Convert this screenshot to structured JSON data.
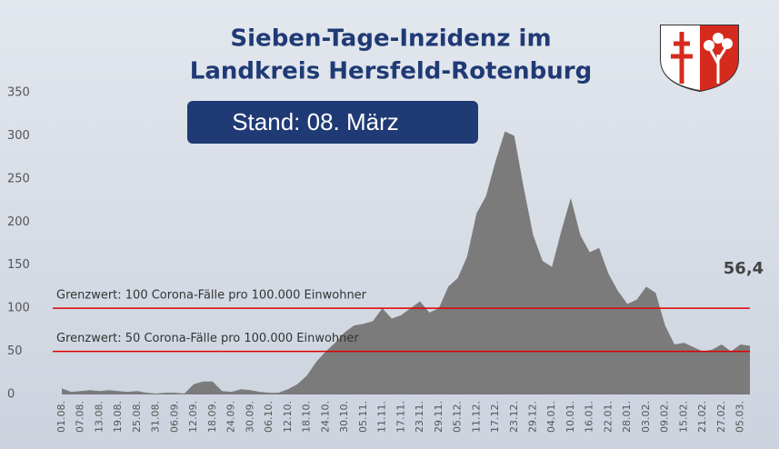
{
  "chart_data": {
    "type": "area",
    "title_lines": [
      "Sieben-Tage-Inzidenz im",
      "Landkreis Hersfeld-Rotenburg"
    ],
    "status": "Stand: 08. März",
    "categories": [
      "01.08.",
      null,
      "07.08.",
      null,
      "13.08.",
      null,
      "19.08.",
      null,
      "25.08.",
      null,
      "31.08.",
      null,
      "06.09.",
      null,
      "12.09.",
      null,
      "18.09.",
      null,
      "24.09.",
      null,
      "30.09.",
      null,
      "06.10.",
      null,
      "12.10.",
      null,
      "18.10.",
      null,
      "24.10.",
      null,
      "30.10.",
      null,
      "05.11.",
      null,
      "11.11.",
      null,
      "17.11.",
      null,
      "23.11.",
      null,
      "29.11.",
      null,
      "05.12.",
      null,
      "11.12.",
      null,
      "17.12.",
      null,
      "23.12.",
      null,
      "29.12.",
      null,
      "04.01.",
      null,
      "10.01.",
      null,
      "16.01.",
      null,
      "22.01.",
      null,
      "28.01.",
      null,
      "03.02.",
      null,
      "09.02.",
      null,
      "15.02.",
      null,
      "21.02.",
      null,
      "27.02.",
      null,
      "05.03.",
      null
    ],
    "values": [
      7,
      3,
      4,
      5,
      4,
      5,
      4,
      3,
      4,
      2,
      1,
      2,
      2,
      1,
      12,
      15,
      15,
      4,
      3,
      6,
      5,
      3,
      2,
      2,
      6,
      12,
      22,
      38,
      50,
      60,
      72,
      80,
      82,
      85,
      100,
      88,
      92,
      100,
      108,
      95,
      100,
      125,
      135,
      160,
      210,
      230,
      270,
      305,
      300,
      240,
      185,
      155,
      148,
      190,
      228,
      185,
      165,
      170,
      140,
      120,
      105,
      110,
      125,
      118,
      80,
      58,
      60,
      55,
      50,
      52,
      58,
      50,
      58,
      56.4
    ],
    "value_labels": [
      null,
      null,
      null,
      null,
      null,
      null,
      null,
      null,
      null,
      null,
      null,
      null,
      null,
      null,
      null,
      null,
      null,
      null,
      null,
      null,
      null,
      null,
      null,
      null,
      null,
      null,
      null,
      null,
      null,
      null,
      null,
      null,
      null,
      null,
      null,
      null,
      null,
      null,
      null,
      null,
      null,
      null,
      null,
      null,
      null,
      null,
      null,
      null,
      null,
      null,
      null,
      null,
      null,
      null,
      null,
      null,
      null,
      null,
      null,
      null,
      null,
      null,
      null,
      null,
      null,
      null,
      null,
      null,
      null,
      null,
      null,
      null,
      null,
      "56,4"
    ],
    "color": "#7b7b7b",
    "ylim": [
      0,
      350
    ],
    "yticks": [
      0,
      50,
      100,
      150,
      200,
      250,
      300,
      350
    ],
    "reference_lines": [
      {
        "value": 100,
        "label": "Grenzwert: 100 Corona-Fälle pro 100.000 Einwohner",
        "color": "#e00000"
      },
      {
        "value": 50,
        "label": "Grenzwert: 50 Corona-Fälle pro 100.000 Einwohner",
        "color": "#e00000"
      }
    ]
  }
}
